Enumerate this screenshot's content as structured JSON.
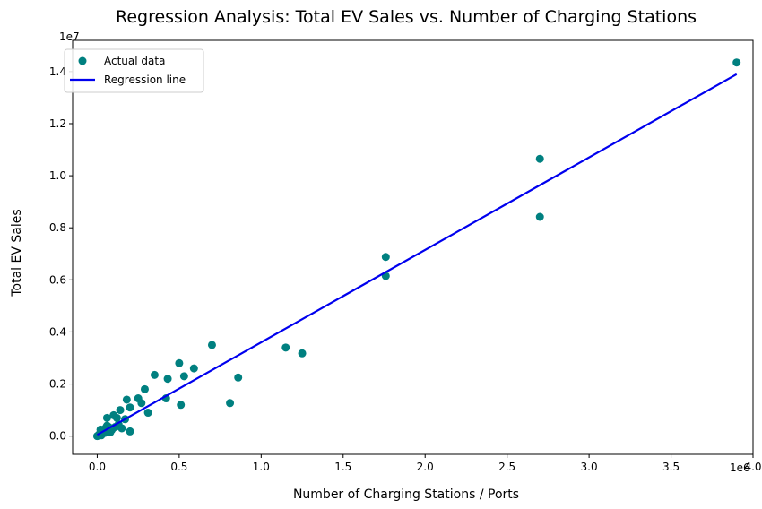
{
  "chart_data": {
    "type": "scatter",
    "title": "Regression Analysis: Total EV Sales vs. Number of Charging Stations",
    "xlabel": "Number of Charging Stations / Ports",
    "ylabel": "Total EV Sales",
    "x_exponent_label": "1e6",
    "y_exponent_label": "1e7",
    "x_scale": 1000000,
    "y_scale": 10000000,
    "xlim": [
      -150000,
      4000000
    ],
    "ylim": [
      -700000,
      15200000
    ],
    "x_ticks": [
      0,
      500000,
      1000000,
      1500000,
      2000000,
      2500000,
      3000000,
      3500000,
      4000000
    ],
    "x_tick_labels": [
      "0.0",
      "0.5",
      "1.0",
      "1.5",
      "2.0",
      "2.5",
      "3.0",
      "3.5",
      "4.0"
    ],
    "y_ticks": [
      0,
      2000000,
      4000000,
      6000000,
      8000000,
      10000000,
      12000000,
      14000000
    ],
    "y_tick_labels": [
      "0.0",
      "0.2",
      "0.4",
      "0.6",
      "0.8",
      "1.0",
      "1.2",
      "1.4"
    ],
    "grid": false,
    "legend_position": "top-left",
    "series": [
      {
        "name": "Actual data",
        "kind": "scatter",
        "color": "#008080",
        "points": [
          [
            3900000,
            14350000
          ],
          [
            2700000,
            10650000
          ],
          [
            2700000,
            8420000
          ],
          [
            1760000,
            6880000
          ],
          [
            1760000,
            6150000
          ],
          [
            1150000,
            3400000
          ],
          [
            1250000,
            3180000
          ],
          [
            700000,
            3500000
          ],
          [
            500000,
            2800000
          ],
          [
            590000,
            2600000
          ],
          [
            530000,
            2300000
          ],
          [
            350000,
            2350000
          ],
          [
            430000,
            2200000
          ],
          [
            860000,
            2250000
          ],
          [
            810000,
            1270000
          ],
          [
            510000,
            1200000
          ],
          [
            420000,
            1450000
          ],
          [
            290000,
            1800000
          ],
          [
            250000,
            1450000
          ],
          [
            270000,
            1270000
          ],
          [
            180000,
            1400000
          ],
          [
            310000,
            900000
          ],
          [
            200000,
            1100000
          ],
          [
            140000,
            1000000
          ],
          [
            100000,
            800000
          ],
          [
            60000,
            700000
          ],
          [
            200000,
            180000
          ],
          [
            170000,
            650000
          ],
          [
            130000,
            450000
          ],
          [
            110000,
            350000
          ],
          [
            90000,
            250000
          ],
          [
            80000,
            150000
          ],
          [
            60000,
            400000
          ],
          [
            50000,
            300000
          ],
          [
            40000,
            200000
          ],
          [
            30000,
            100000
          ],
          [
            20000,
            250000
          ],
          [
            15000,
            80000
          ],
          [
            10000,
            50000
          ],
          [
            5000,
            20000
          ],
          [
            0,
            0
          ],
          [
            25000,
            30000
          ],
          [
            45000,
            120000
          ],
          [
            70000,
            350000
          ],
          [
            120000,
            700000
          ],
          [
            150000,
            300000
          ]
        ]
      },
      {
        "name": "Regression line",
        "kind": "line",
        "color": "#0000ee",
        "points": [
          [
            0,
            50000
          ],
          [
            3900000,
            13900000
          ]
        ]
      }
    ]
  }
}
